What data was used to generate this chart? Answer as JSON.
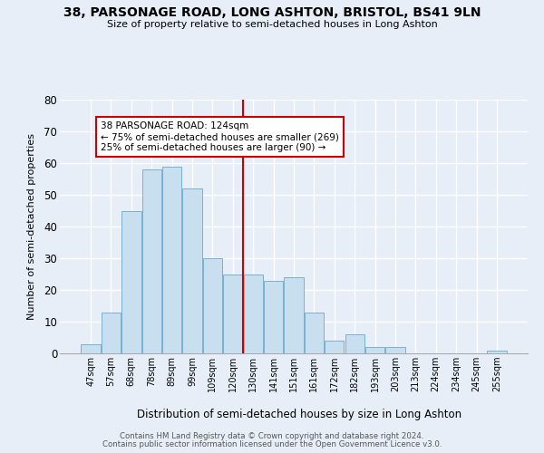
{
  "title": "38, PARSONAGE ROAD, LONG ASHTON, BRISTOL, BS41 9LN",
  "subtitle": "Size of property relative to semi-detached houses in Long Ashton",
  "xlabel": "Distribution of semi-detached houses by size in Long Ashton",
  "ylabel": "Number of semi-detached properties",
  "bar_labels": [
    "47sqm",
    "57sqm",
    "68sqm",
    "78sqm",
    "89sqm",
    "99sqm",
    "109sqm",
    "120sqm",
    "130sqm",
    "141sqm",
    "151sqm",
    "161sqm",
    "172sqm",
    "182sqm",
    "193sqm",
    "203sqm",
    "213sqm",
    "224sqm",
    "234sqm",
    "245sqm",
    "255sqm"
  ],
  "bar_values": [
    3,
    13,
    45,
    58,
    59,
    52,
    30,
    25,
    25,
    23,
    24,
    13,
    4,
    6,
    2,
    2,
    0,
    0,
    0,
    0,
    1
  ],
  "bar_color": "#c8dff0",
  "bar_edge_color": "#7ab0d0",
  "ylim": [
    0,
    80
  ],
  "yticks": [
    0,
    10,
    20,
    30,
    40,
    50,
    60,
    70,
    80
  ],
  "vline_x": 7.5,
  "vline_color": "#cc0000",
  "annotation_text": "38 PARSONAGE ROAD: 124sqm\n← 75% of semi-detached houses are smaller (269)\n25% of semi-detached houses are larger (90) →",
  "footer_line1": "Contains HM Land Registry data © Crown copyright and database right 2024.",
  "footer_line2": "Contains public sector information licensed under the Open Government Licence v3.0.",
  "background_color": "#e8eef8",
  "plot_background_color": "#e8eef8",
  "grid_color": "#ffffff"
}
